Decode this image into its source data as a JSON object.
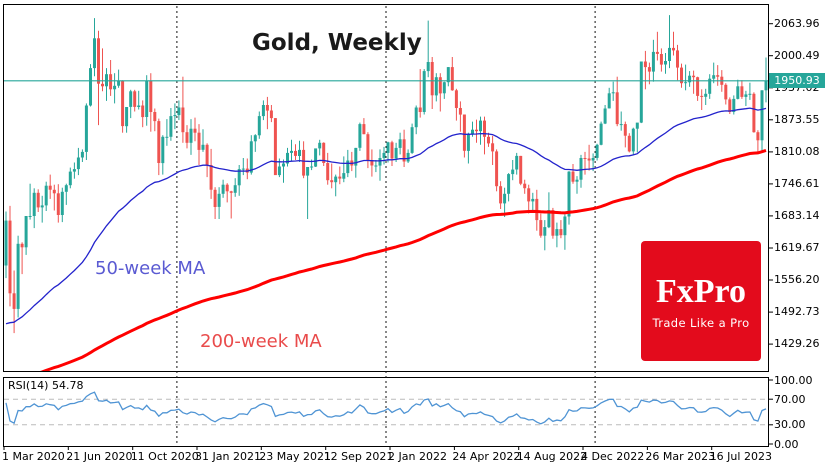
{
  "title": "Gold, Weekly",
  "overlays": {
    "ma50_label": "50-week MA",
    "ma200_label": "200-week MA"
  },
  "rsi_panel": {
    "label": "RSI(14) 54.78",
    "level_labels": [
      "100.00",
      "70.00",
      "30.00",
      "0.00"
    ],
    "levels": [
      100,
      70,
      30,
      0
    ]
  },
  "price_axis": {
    "labels": [
      "2063.96",
      "2000.49",
      "1937.02",
      "1873.55",
      "1810.08",
      "1746.61",
      "1683.14",
      "1619.67",
      "1556.20",
      "1492.73",
      "1429.26"
    ],
    "current_price_label": "1950.93"
  },
  "logo": {
    "name": "FxPro",
    "tagline": "Trade Like a Pro"
  },
  "colors": {
    "up_candle": "#26a69a",
    "down_candle": "#ef5350",
    "ma50": "#2323cc",
    "ma200": "#ff0000",
    "current_price_line": "#26a69a",
    "badge_bg": "#26a69a",
    "rsi_line": "#4f94d4",
    "rsi_level_dash": "#bbbbbb",
    "grid_dash": "#111111",
    "logo_red": "#e30b1c"
  },
  "chart_data": {
    "type": "candlestick",
    "title": "Gold, Weekly",
    "interval": "weekly",
    "start_date": "1 Mar 2020",
    "ylim": [
      1376,
      2101
    ],
    "current_price": 1950.93,
    "rsi_current": 54.78,
    "ma50_period": 50,
    "ma200_period": 200,
    "year_gridline_weeks": [
      44,
      96,
      148
    ],
    "date_ticks": [
      {
        "week": 0,
        "label": "1 Mar 2020"
      },
      {
        "week": 16,
        "label": "21 Jun 2020"
      },
      {
        "week": 32,
        "label": "11 Oct 2020"
      },
      {
        "week": 48,
        "label": "31 Jan 2021"
      },
      {
        "week": 64,
        "label": "23 May 2021"
      },
      {
        "week": 80,
        "label": "12 Sep 2021"
      },
      {
        "week": 96,
        "label": "2 Jan 2022"
      },
      {
        "week": 112,
        "label": "24 Apr 2022"
      },
      {
        "week": 128,
        "label": "14 Aug 2022"
      },
      {
        "week": 144,
        "label": "4 Dec 2022"
      },
      {
        "week": 160,
        "label": "26 Mar 2023"
      },
      {
        "week": 176,
        "label": "16 Jul 2023"
      }
    ],
    "ohlc": [
      [
        1585,
        1692,
        1560,
        1674
      ],
      [
        1674,
        1703,
        1504,
        1530
      ],
      [
        1530,
        1575,
        1451,
        1499
      ],
      [
        1499,
        1644,
        1482,
        1628
      ],
      [
        1628,
        1631,
        1568,
        1621
      ],
      [
        1621,
        1671,
        1606,
        1683
      ],
      [
        1683,
        1747,
        1676,
        1683
      ],
      [
        1683,
        1738,
        1659,
        1729
      ],
      [
        1729,
        1736,
        1691,
        1700
      ],
      [
        1700,
        1723,
        1670,
        1704
      ],
      [
        1704,
        1751,
        1693,
        1743
      ],
      [
        1743,
        1765,
        1717,
        1735
      ],
      [
        1735,
        1745,
        1694,
        1728
      ],
      [
        1728,
        1746,
        1670,
        1685
      ],
      [
        1685,
        1739,
        1671,
        1731
      ],
      [
        1731,
        1747,
        1705,
        1744
      ],
      [
        1744,
        1779,
        1738,
        1771
      ],
      [
        1771,
        1789,
        1757,
        1776
      ],
      [
        1776,
        1818,
        1764,
        1799
      ],
      [
        1799,
        1815,
        1790,
        1810
      ],
      [
        1810,
        1906,
        1794,
        1902
      ],
      [
        1902,
        1984,
        1900,
        1976
      ],
      [
        1976,
        2075,
        1960,
        2035
      ],
      [
        2035,
        2050,
        1863,
        1945
      ],
      [
        1945,
        2015,
        1930,
        1940
      ],
      [
        1940,
        1976,
        1911,
        1964
      ],
      [
        1964,
        1992,
        1921,
        1934
      ],
      [
        1934,
        1966,
        1906,
        1941
      ],
      [
        1941,
        1973,
        1937,
        1951
      ],
      [
        1951,
        1952,
        1848,
        1861
      ],
      [
        1861,
        1899,
        1848,
        1899
      ],
      [
        1899,
        1933,
        1877,
        1930
      ],
      [
        1930,
        1933,
        1890,
        1899
      ],
      [
        1899,
        1931,
        1894,
        1902
      ],
      [
        1902,
        1912,
        1859,
        1879
      ],
      [
        1879,
        1962,
        1862,
        1951
      ],
      [
        1951,
        1966,
        1850,
        1889
      ],
      [
        1889,
        1896,
        1851,
        1871
      ],
      [
        1871,
        1876,
        1764,
        1788
      ],
      [
        1788,
        1843,
        1765,
        1840
      ],
      [
        1840,
        1875,
        1822,
        1840
      ],
      [
        1840,
        1897,
        1832,
        1881
      ],
      [
        1881,
        1906,
        1855,
        1883
      ],
      [
        1883,
        1912,
        1873,
        1898
      ],
      [
        1898,
        1959,
        1828,
        1849
      ],
      [
        1849,
        1863,
        1817,
        1828
      ],
      [
        1828,
        1875,
        1804,
        1856
      ],
      [
        1856,
        1878,
        1831,
        1848
      ],
      [
        1848,
        1865,
        1784,
        1814
      ],
      [
        1814,
        1855,
        1810,
        1824
      ],
      [
        1824,
        1827,
        1760,
        1784
      ],
      [
        1784,
        1816,
        1717,
        1735
      ],
      [
        1735,
        1740,
        1677,
        1701
      ],
      [
        1701,
        1740,
        1677,
        1727
      ],
      [
        1727,
        1755,
        1719,
        1745
      ],
      [
        1745,
        1748,
        1710,
        1732
      ],
      [
        1732,
        1733,
        1678,
        1729
      ],
      [
        1729,
        1758,
        1721,
        1744
      ],
      [
        1744,
        1784,
        1723,
        1776
      ],
      [
        1776,
        1798,
        1764,
        1777
      ],
      [
        1777,
        1797,
        1756,
        1769
      ],
      [
        1769,
        1843,
        1765,
        1831
      ],
      [
        1831,
        1845,
        1810,
        1843
      ],
      [
        1843,
        1890,
        1836,
        1881
      ],
      [
        1881,
        1912,
        1873,
        1903
      ],
      [
        1903,
        1919,
        1855,
        1892
      ],
      [
        1892,
        1903,
        1869,
        1877
      ],
      [
        1877,
        1877,
        1767,
        1764
      ],
      [
        1764,
        1797,
        1760,
        1781
      ],
      [
        1781,
        1795,
        1749,
        1787
      ],
      [
        1787,
        1818,
        1781,
        1808
      ],
      [
        1808,
        1834,
        1791,
        1812
      ],
      [
        1812,
        1825,
        1794,
        1802
      ],
      [
        1802,
        1832,
        1790,
        1814
      ],
      [
        1814,
        1831,
        1758,
        1763
      ],
      [
        1763,
        1780,
        1677,
        1780
      ],
      [
        1780,
        1795,
        1774,
        1781
      ],
      [
        1781,
        1809,
        1780,
        1817
      ],
      [
        1817,
        1834,
        1803,
        1828
      ],
      [
        1828,
        1829,
        1782,
        1788
      ],
      [
        1788,
        1808,
        1745,
        1754
      ],
      [
        1754,
        1787,
        1738,
        1750
      ],
      [
        1750,
        1765,
        1722,
        1761
      ],
      [
        1761,
        1781,
        1746,
        1757
      ],
      [
        1757,
        1801,
        1750,
        1768
      ],
      [
        1768,
        1814,
        1760,
        1793
      ],
      [
        1793,
        1810,
        1772,
        1783
      ],
      [
        1783,
        1818,
        1759,
        1818
      ],
      [
        1818,
        1868,
        1812,
        1865
      ],
      [
        1865,
        1877,
        1845,
        1845
      ],
      [
        1845,
        1849,
        1778,
        1792
      ],
      [
        1792,
        1815,
        1761,
        1783
      ],
      [
        1783,
        1794,
        1770,
        1783
      ],
      [
        1783,
        1815,
        1753,
        1798
      ],
      [
        1798,
        1820,
        1785,
        1808
      ],
      [
        1808,
        1830,
        1789,
        1829
      ],
      [
        1829,
        1832,
        1782,
        1797
      ],
      [
        1797,
        1828,
        1790,
        1818
      ],
      [
        1818,
        1848,
        1805,
        1835
      ],
      [
        1835,
        1854,
        1780,
        1791
      ],
      [
        1791,
        1815,
        1788,
        1808
      ],
      [
        1808,
        1866,
        1806,
        1859
      ],
      [
        1859,
        1902,
        1845,
        1898
      ],
      [
        1898,
        1974,
        1878,
        1889
      ],
      [
        1889,
        1974,
        1884,
        1970
      ],
      [
        1970,
        2070,
        1958,
        1988
      ],
      [
        1988,
        1998,
        1895,
        1922
      ],
      [
        1922,
        1966,
        1910,
        1958
      ],
      [
        1958,
        1966,
        1890,
        1926
      ],
      [
        1926,
        1949,
        1915,
        1948
      ],
      [
        1948,
        1978,
        1940,
        1978
      ],
      [
        1978,
        1998,
        1931,
        1932
      ],
      [
        1932,
        1935,
        1872,
        1897
      ],
      [
        1897,
        1910,
        1850,
        1884
      ],
      [
        1884,
        1884,
        1799,
        1812
      ],
      [
        1812,
        1848,
        1787,
        1846
      ],
      [
        1846,
        1870,
        1840,
        1854
      ],
      [
        1854,
        1874,
        1828,
        1851
      ],
      [
        1851,
        1880,
        1824,
        1872
      ],
      [
        1872,
        1880,
        1805,
        1840
      ],
      [
        1840,
        1848,
        1820,
        1827
      ],
      [
        1827,
        1842,
        1784,
        1811
      ],
      [
        1811,
        1815,
        1732,
        1742
      ],
      [
        1742,
        1752,
        1697,
        1708
      ],
      [
        1708,
        1739,
        1681,
        1727
      ],
      [
        1727,
        1768,
        1712,
        1766
      ],
      [
        1766,
        1794,
        1754,
        1775
      ],
      [
        1775,
        1808,
        1765,
        1802
      ],
      [
        1802,
        1802,
        1744,
        1747
      ],
      [
        1747,
        1755,
        1727,
        1738
      ],
      [
        1738,
        1745,
        1688,
        1712
      ],
      [
        1712,
        1729,
        1690,
        1717
      ],
      [
        1717,
        1735,
        1654,
        1675
      ],
      [
        1675,
        1688,
        1640,
        1644
      ],
      [
        1644,
        1675,
        1615,
        1661
      ],
      [
        1661,
        1730,
        1659,
        1695
      ],
      [
        1695,
        1699,
        1638,
        1644
      ],
      [
        1644,
        1670,
        1621,
        1657
      ],
      [
        1657,
        1675,
        1639,
        1645
      ],
      [
        1645,
        1686,
        1616,
        1682
      ],
      [
        1682,
        1772,
        1666,
        1771
      ],
      [
        1771,
        1786,
        1747,
        1751
      ],
      [
        1751,
        1762,
        1727,
        1755
      ],
      [
        1755,
        1804,
        1739,
        1798
      ],
      [
        1798,
        1810,
        1765,
        1797
      ],
      [
        1797,
        1824,
        1773,
        1793
      ],
      [
        1793,
        1807,
        1772,
        1798
      ],
      [
        1798,
        1826,
        1793,
        1824
      ],
      [
        1824,
        1870,
        1823,
        1866
      ],
      [
        1866,
        1903,
        1865,
        1896
      ],
      [
        1896,
        1937,
        1896,
        1926
      ],
      [
        1926,
        1949,
        1911,
        1928
      ],
      [
        1928,
        1959,
        1861,
        1865
      ],
      [
        1865,
        1890,
        1852,
        1865
      ],
      [
        1865,
        1870,
        1819,
        1842
      ],
      [
        1842,
        1847,
        1809,
        1811
      ],
      [
        1811,
        1858,
        1804,
        1856
      ],
      [
        1856,
        1867,
        1809,
        1868
      ],
      [
        1868,
        1989,
        1867,
        1989
      ],
      [
        1989,
        2010,
        1934,
        1978
      ],
      [
        1978,
        1987,
        1944,
        1969
      ],
      [
        1969,
        2032,
        1949,
        2008
      ],
      [
        2008,
        2048,
        1991,
        2004
      ],
      [
        2004,
        2015,
        1969,
        1983
      ],
      [
        1983,
        2006,
        1965,
        1990
      ],
      [
        1990,
        2081,
        1976,
        2016
      ],
      [
        2016,
        2048,
        2001,
        2011
      ],
      [
        2011,
        2022,
        1952,
        1977
      ],
      [
        1977,
        1985,
        1937,
        1946
      ],
      [
        1946,
        1983,
        1932,
        1948
      ],
      [
        1948,
        1970,
        1939,
        1961
      ],
      [
        1961,
        1971,
        1925,
        1958
      ],
      [
        1958,
        1959,
        1911,
        1921
      ],
      [
        1921,
        1934,
        1893,
        1919
      ],
      [
        1919,
        1935,
        1903,
        1925
      ],
      [
        1925,
        1964,
        1915,
        1955
      ],
      [
        1955,
        1987,
        1946,
        1962
      ],
      [
        1962,
        1982,
        1941,
        1959
      ],
      [
        1959,
        1972,
        1929,
        1943
      ],
      [
        1943,
        1946,
        1904,
        1914
      ],
      [
        1914,
        1918,
        1885,
        1889
      ],
      [
        1889,
        1922,
        1884,
        1915
      ],
      [
        1915,
        1953,
        1914,
        1940
      ],
      [
        1940,
        1952,
        1915,
        1919
      ],
      [
        1919,
        1931,
        1901,
        1924
      ],
      [
        1924,
        1947,
        1913,
        1925
      ],
      [
        1925,
        1928,
        1848,
        1849
      ],
      [
        1849,
        1853,
        1810,
        1833
      ],
      [
        1833,
        1932,
        1811,
        1932
      ],
      [
        1932,
        1997,
        1908,
        1951
      ]
    ]
  }
}
